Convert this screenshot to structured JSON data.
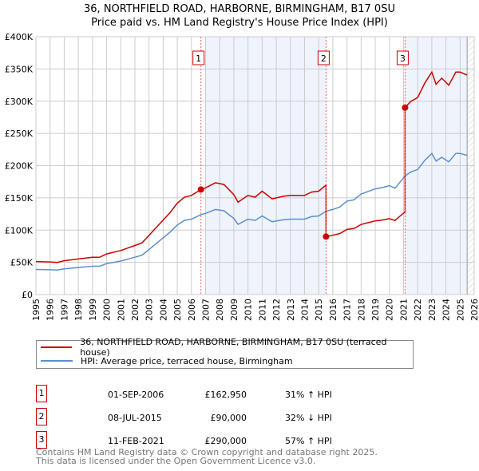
{
  "chart_data": {
    "type": "line",
    "title": "36, NORTHFIELD ROAD, HARBORNE, BIRMINGHAM, B17 0SU",
    "subtitle": "Price paid vs. HM Land Registry's House Price Index (HPI)",
    "xlim": [
      1995,
      2026
    ],
    "ylim": [
      0,
      400000
    ],
    "yticks": [
      {
        "v": 0,
        "label": "£0"
      },
      {
        "v": 50000,
        "label": "£50K"
      },
      {
        "v": 100000,
        "label": "£100K"
      },
      {
        "v": 150000,
        "label": "£150K"
      },
      {
        "v": 200000,
        "label": "£200K"
      },
      {
        "v": 250000,
        "label": "£250K"
      },
      {
        "v": 300000,
        "label": "£300K"
      },
      {
        "v": 350000,
        "label": "£350K"
      },
      {
        "v": 400000,
        "label": "£400K"
      }
    ],
    "xticks": [
      "1995",
      "1996",
      "1997",
      "1998",
      "1999",
      "2000",
      "2001",
      "2002",
      "2003",
      "2004",
      "2005",
      "2006",
      "2007",
      "2008",
      "2009",
      "2010",
      "2011",
      "2012",
      "2013",
      "2014",
      "2015",
      "2016",
      "2017",
      "2018",
      "2019",
      "2020",
      "2021",
      "2022",
      "2023",
      "2024",
      "2025",
      "2026"
    ],
    "grid": true,
    "shaded_ranges": [
      [
        2007.0,
        2015.52
      ],
      [
        2021.11,
        2025.5
      ]
    ],
    "hatched_from": 2025.5,
    "series": [
      {
        "name": "36, NORTHFIELD ROAD, HARBORNE, BIRMINGHAM, B17 0SU (terraced house)",
        "color": "#cc0000"
      },
      {
        "name": "HPI: Average price, terraced house, Birmingham",
        "color": "#5b8fd0",
        "points": [
          [
            1995,
            39000
          ],
          [
            1996,
            38500
          ],
          [
            1996.5,
            38000
          ],
          [
            1997,
            40000
          ],
          [
            1998,
            42000
          ],
          [
            1999,
            44000
          ],
          [
            1999.5,
            44000
          ],
          [
            2000,
            48000
          ],
          [
            2001,
            52000
          ],
          [
            2002,
            58000
          ],
          [
            2002.5,
            61000
          ],
          [
            2003,
            70000
          ],
          [
            2004,
            88000
          ],
          [
            2004.5,
            97000
          ],
          [
            2005,
            108000
          ],
          [
            2005.5,
            115000
          ],
          [
            2006,
            117000
          ],
          [
            2006.67,
            124000
          ],
          [
            2007,
            126000
          ],
          [
            2007.7,
            132000
          ],
          [
            2008.3,
            130000
          ],
          [
            2009,
            118000
          ],
          [
            2009.3,
            109000
          ],
          [
            2010,
            117000
          ],
          [
            2010.5,
            115000
          ],
          [
            2011,
            122000
          ],
          [
            2011.7,
            113000
          ],
          [
            2012.5,
            116000
          ],
          [
            2013,
            117000
          ],
          [
            2014,
            117000
          ],
          [
            2014.5,
            121000
          ],
          [
            2015,
            122000
          ],
          [
            2015.5,
            129000
          ],
          [
            2016,
            132000
          ],
          [
            2016.5,
            136000
          ],
          [
            2017,
            145000
          ],
          [
            2017.5,
            147000
          ],
          [
            2018,
            156000
          ],
          [
            2018.5,
            160000
          ],
          [
            2019,
            164000
          ],
          [
            2019.5,
            166000
          ],
          [
            2020,
            169000
          ],
          [
            2020.4,
            165000
          ],
          [
            2020.7,
            173000
          ],
          [
            2021.11,
            184000
          ],
          [
            2021.5,
            190000
          ],
          [
            2022,
            194000
          ],
          [
            2022.5,
            208000
          ],
          [
            2023,
            219000
          ],
          [
            2023.3,
            207000
          ],
          [
            2023.7,
            213000
          ],
          [
            2024.2,
            206000
          ],
          [
            2024.7,
            219000
          ],
          [
            2025,
            219000
          ],
          [
            2025.5,
            216000
          ]
        ]
      }
    ],
    "sales": [
      {
        "id": "1",
        "x": 2006.67,
        "date": "01-SEP-2006",
        "price": 162950,
        "price_label": "£162,950",
        "hpi": "31% ↑ HPI"
      },
      {
        "id": "2",
        "x": 2015.52,
        "date": "08-JUL-2015",
        "price": 90000,
        "price_label": "£90,000",
        "hpi": "32% ↓ HPI"
      },
      {
        "id": "3",
        "x": 2021.11,
        "date": "11-FEB-2021",
        "price": 290000,
        "price_label": "£290,000",
        "hpi": "57% ↑ HPI"
      }
    ]
  },
  "footer": {
    "line1": "Contains HM Land Registry data © Crown copyright and database right 2025.",
    "line2": "This data is licensed under the Open Government Licence v3.0."
  }
}
